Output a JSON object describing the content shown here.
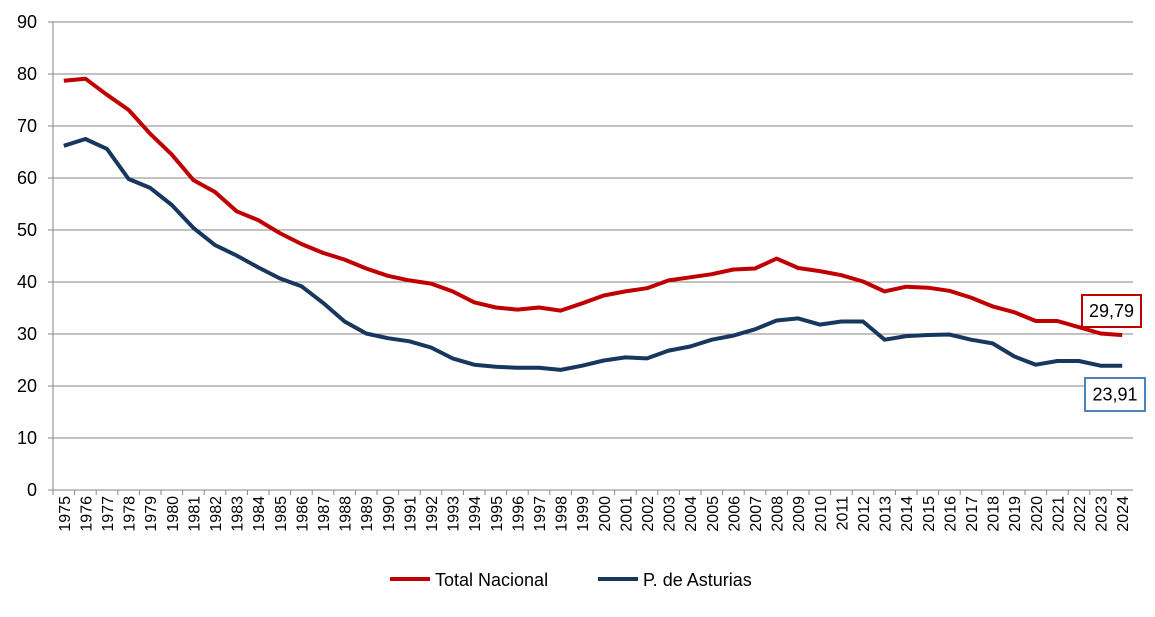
{
  "chart_data": {
    "type": "line",
    "title": "",
    "xlabel": "",
    "ylabel": "",
    "ylim": [
      0,
      90
    ],
    "yticks": [
      0,
      10,
      20,
      30,
      40,
      50,
      60,
      70,
      80,
      90
    ],
    "grid": true,
    "legend_position": "bottom",
    "categories": [
      "1975",
      "1976",
      "1977",
      "1978",
      "1979",
      "1980",
      "1981",
      "1982",
      "1983",
      "1984",
      "1985",
      "1986",
      "1987",
      "1988",
      "1989",
      "1990",
      "1991",
      "1992",
      "1993",
      "1994",
      "1995",
      "1996",
      "1997",
      "1998",
      "1999",
      "2000",
      "2001",
      "2002",
      "2003",
      "2004",
      "2005",
      "2006",
      "2007",
      "2008",
      "2009",
      "2010",
      "2011",
      "2012",
      "2013",
      "2014",
      "2015",
      "2016",
      "2017",
      "2018",
      "2019",
      "2020",
      "2021",
      "2022",
      "2023",
      "2024"
    ],
    "series": [
      {
        "name": "Total Nacional",
        "color": "#C00000",
        "values": [
          78.7,
          79.1,
          76.0,
          73.1,
          68.5,
          64.5,
          59.6,
          57.3,
          53.6,
          51.9,
          49.4,
          47.3,
          45.6,
          44.3,
          42.6,
          41.2,
          40.3,
          39.7,
          38.2,
          36.1,
          35.1,
          34.7,
          35.1,
          34.5,
          35.9,
          37.4,
          38.2,
          38.8,
          40.3,
          40.9,
          41.5,
          42.4,
          42.6,
          44.5,
          42.7,
          42.1,
          41.3,
          40.1,
          38.2,
          39.1,
          38.9,
          38.3,
          37.0,
          35.3,
          34.2,
          32.5,
          32.5,
          31.3,
          30.1,
          29.79
        ],
        "end_label": "29,79"
      },
      {
        "name": "P. de Asturias",
        "color": "#17375E",
        "values": [
          66.2,
          67.5,
          65.6,
          59.8,
          58.1,
          54.8,
          50.4,
          47.1,
          45.1,
          42.8,
          40.7,
          39.2,
          36.0,
          32.4,
          30.1,
          29.2,
          28.6,
          27.4,
          25.3,
          24.1,
          23.7,
          23.5,
          23.5,
          23.1,
          23.9,
          24.9,
          25.5,
          25.3,
          26.8,
          27.6,
          28.9,
          29.7,
          30.9,
          32.6,
          33.0,
          31.8,
          32.4,
          32.4,
          28.9,
          29.6,
          29.8,
          29.9,
          28.9,
          28.2,
          25.7,
          24.1,
          24.8,
          24.8,
          23.9,
          23.91
        ],
        "end_label": "23,91",
        "label_border_color": "#4F81BD"
      }
    ]
  }
}
